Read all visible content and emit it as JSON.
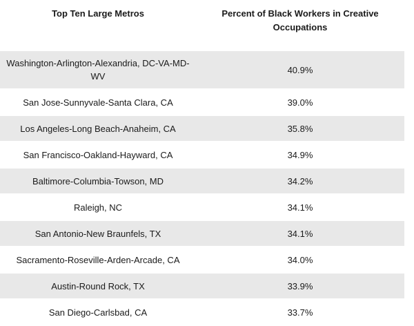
{
  "chart_data": {
    "type": "table",
    "columns": [
      "Top Ten Large Metros",
      "Percent of Black Workers in Creative Occupations"
    ],
    "rows": [
      {
        "metro": "Washington-Arlington-Alexandria, DC-VA-MD-WV",
        "percent": "40.9%"
      },
      {
        "metro": "San Jose-Sunnyvale-Santa Clara, CA",
        "percent": "39.0%"
      },
      {
        "metro": "Los Angeles-Long Beach-Anaheim, CA",
        "percent": "35.8%"
      },
      {
        "metro": "San Francisco-Oakland-Hayward, CA",
        "percent": "34.9%"
      },
      {
        "metro": "Baltimore-Columbia-Towson, MD",
        "percent": "34.2%"
      },
      {
        "metro": "Raleigh, NC",
        "percent": "34.1%"
      },
      {
        "metro": "San Antonio-New Braunfels, TX",
        "percent": "34.1%"
      },
      {
        "metro": "Sacramento-Roseville-Arden-Arcade, CA",
        "percent": "34.0%"
      },
      {
        "metro": "Austin-Round Rock, TX",
        "percent": "33.9%"
      },
      {
        "metro": "San Diego-Carlsbad, CA",
        "percent": "33.7%"
      }
    ],
    "colors": {
      "shaded_row": "#e8e8e8",
      "plain_row": "#ffffff"
    }
  }
}
